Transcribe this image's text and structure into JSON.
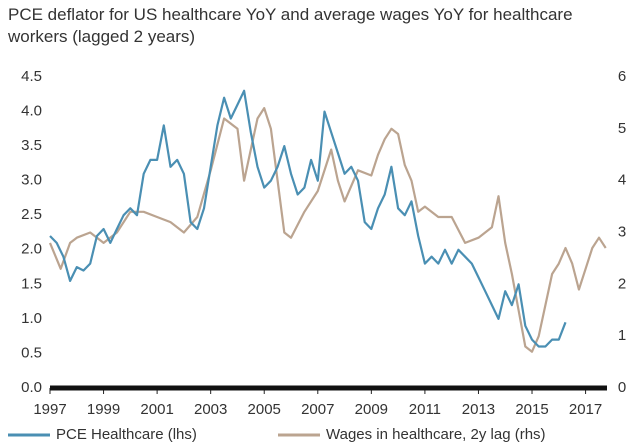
{
  "chart_data": {
    "type": "line",
    "title": "PCE deflator for US healthcare YoY and average wages YoY for healthcare workers (lagged 2 years)",
    "xlim": [
      1997,
      2017.8
    ],
    "xticks": [
      1997,
      1999,
      2001,
      2003,
      2005,
      2007,
      2009,
      2011,
      2013,
      2015,
      2017
    ],
    "ylim": [
      0,
      4.5
    ],
    "yticks": [
      {
        "value": 0,
        "label": "0.0"
      },
      0.5,
      {
        "value": 1,
        "label": "1.0"
      },
      1.5,
      {
        "value": 2,
        "label": "2.0"
      },
      2.5,
      {
        "value": 3,
        "label": "3.0"
      },
      3.5,
      {
        "value": 4,
        "label": "4.0"
      },
      4.5
    ],
    "y2lim": [
      0,
      6
    ],
    "y2ticks": [
      0,
      1,
      2,
      3,
      4,
      5,
      6
    ],
    "grid": false,
    "series": [
      {
        "name": "PCE Healthcare (lhs)",
        "color": "#4a8fb3",
        "axis": "y",
        "x": [
          1997.0,
          1997.25,
          1997.5,
          1997.75,
          1998.0,
          1998.25,
          1998.5,
          1998.75,
          1999.0,
          1999.25,
          1999.5,
          1999.75,
          2000.0,
          2000.25,
          2000.5,
          2000.75,
          2001.0,
          2001.25,
          2001.5,
          2001.75,
          2002.0,
          2002.25,
          2002.5,
          2002.75,
          2003.0,
          2003.25,
          2003.5,
          2003.75,
          2004.0,
          2004.25,
          2004.5,
          2004.75,
          2005.0,
          2005.25,
          2005.5,
          2005.75,
          2006.0,
          2006.25,
          2006.5,
          2006.75,
          2007.0,
          2007.25,
          2007.5,
          2007.75,
          2008.0,
          2008.25,
          2008.5,
          2008.75,
          2009.0,
          2009.25,
          2009.5,
          2009.75,
          2010.0,
          2010.25,
          2010.5,
          2010.75,
          2011.0,
          2011.25,
          2011.5,
          2011.75,
          2012.0,
          2012.25,
          2012.5,
          2012.75,
          2013.0,
          2013.25,
          2013.5,
          2013.75,
          2014.0,
          2014.25,
          2014.5,
          2014.75,
          2015.0,
          2015.25,
          2015.5,
          2015.75,
          2016.0,
          2016.25
        ],
        "values": [
          2.2,
          2.1,
          1.9,
          1.55,
          1.75,
          1.7,
          1.8,
          2.2,
          2.3,
          2.1,
          2.3,
          2.5,
          2.6,
          2.5,
          3.1,
          3.3,
          3.3,
          3.8,
          3.2,
          3.3,
          3.1,
          2.4,
          2.3,
          2.6,
          3.2,
          3.8,
          4.2,
          3.9,
          4.1,
          4.3,
          3.7,
          3.2,
          2.9,
          3.0,
          3.2,
          3.5,
          3.1,
          2.8,
          2.9,
          3.3,
          3.0,
          4.0,
          3.7,
          3.4,
          3.1,
          3.2,
          3.0,
          2.4,
          2.3,
          2.6,
          2.8,
          3.2,
          2.6,
          2.5,
          2.7,
          2.2,
          1.8,
          1.9,
          1.8,
          2.0,
          1.8,
          2.0,
          1.9,
          1.8,
          1.6,
          1.4,
          1.2,
          1.0,
          1.4,
          1.2,
          1.5,
          0.9,
          0.7,
          0.6,
          0.6,
          0.7,
          0.7,
          0.95
        ]
      },
      {
        "name": "Wages in healthcare, 2y lag (rhs)",
        "color": "#bba490",
        "axis": "y2",
        "x": [
          1997.0,
          1997.4,
          1997.75,
          1998.0,
          1998.5,
          1999.0,
          1999.5,
          2000.0,
          2000.5,
          2001.0,
          2001.5,
          2002.0,
          2002.5,
          2003.0,
          2003.5,
          2004.0,
          2004.25,
          2004.5,
          2004.75,
          2005.0,
          2005.25,
          2005.5,
          2005.75,
          2006.0,
          2006.5,
          2007.0,
          2007.5,
          2007.75,
          2008.0,
          2008.5,
          2009.0,
          2009.25,
          2009.5,
          2009.75,
          2010.0,
          2010.25,
          2010.5,
          2010.75,
          2011.0,
          2011.5,
          2012.0,
          2012.5,
          2013.0,
          2013.5,
          2013.75,
          2014.0,
          2014.25,
          2014.5,
          2014.75,
          2015.0,
          2015.25,
          2015.5,
          2015.75,
          2016.0,
          2016.25,
          2016.5,
          2016.75,
          2017.0,
          2017.25,
          2017.5,
          2017.75
        ],
        "values": [
          2.8,
          2.3,
          2.8,
          2.9,
          3.0,
          2.8,
          3.0,
          3.4,
          3.4,
          3.3,
          3.2,
          3.0,
          3.3,
          4.2,
          5.2,
          5.0,
          4.0,
          4.6,
          5.2,
          5.4,
          5.0,
          4.0,
          3.0,
          2.9,
          3.4,
          3.8,
          4.6,
          4.0,
          3.6,
          4.2,
          4.1,
          4.5,
          4.8,
          5.0,
          4.9,
          4.3,
          4.0,
          3.4,
          3.5,
          3.3,
          3.3,
          2.8,
          2.9,
          3.1,
          3.7,
          2.8,
          2.2,
          1.5,
          0.8,
          0.7,
          1.0,
          1.6,
          2.2,
          2.4,
          2.7,
          2.4,
          1.9,
          2.3,
          2.7,
          2.9,
          2.7
        ]
      }
    ]
  }
}
